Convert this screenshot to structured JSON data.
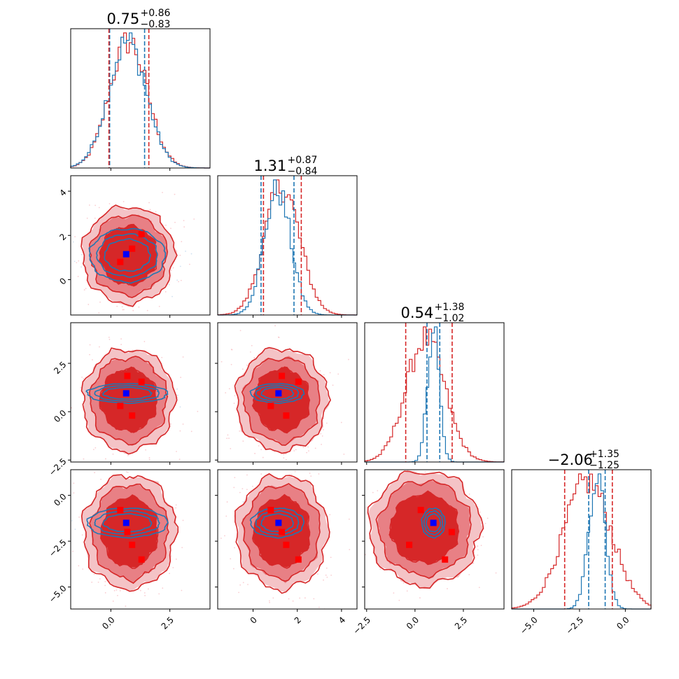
{
  "chart_data": {
    "type": "corner",
    "n_params": 4,
    "colors": {
      "red": "#d62728",
      "blue": "#1f77b4",
      "marker_red": "#ff0000",
      "marker_blue": "#0000ff"
    },
    "axis_ranges": [
      [
        -1.7,
        4.2
      ],
      [
        -1.6,
        4.7
      ],
      [
        -2.6,
        4.6
      ],
      [
        -6.2,
        1.4
      ]
    ],
    "titles": [
      {
        "value": "0.75",
        "plus": "+0.86",
        "minus": "−0.83"
      },
      {
        "value": "1.31",
        "plus": "+0.87",
        "minus": "−0.84"
      },
      {
        "value": "0.54",
        "plus": "+1.38",
        "minus": "−1.02"
      },
      {
        "value": "−2.06",
        "plus": "+1.35",
        "minus": "−1.25"
      }
    ],
    "ticks": {
      "p0": [
        {
          "v": 0,
          "label": "0.0"
        },
        {
          "v": 2.5,
          "label": "2.5"
        }
      ],
      "p1": [
        {
          "v": 0,
          "label": "0"
        },
        {
          "v": 2,
          "label": "2"
        },
        {
          "v": 4,
          "label": "4"
        }
      ],
      "p2": [
        {
          "v": -2.5,
          "label": "−2.5"
        },
        {
          "v": 0,
          "label": "0.0"
        },
        {
          "v": 2.5,
          "label": "2.5"
        }
      ],
      "p3": [
        {
          "v": -5,
          "label": "−5.0"
        },
        {
          "v": -2.5,
          "label": "−2.5"
        },
        {
          "v": 0,
          "label": "0.0"
        }
      ]
    },
    "quantiles_red": [
      [
        -0.08,
        1.61
      ],
      [
        0.47,
        2.18
      ],
      [
        -0.48,
        1.92
      ],
      [
        -3.31,
        -0.71
      ]
    ],
    "quantiles_blue": [
      [
        -0.05,
        1.43
      ],
      [
        0.36,
        1.85
      ],
      [
        0.62,
        1.28
      ],
      [
        -2.0,
        -1.1
      ]
    ],
    "marginal_width": [
      [
        0.8,
        0.8
      ],
      [
        0.8,
        0.6
      ],
      [
        1.0,
        0.3
      ],
      [
        1.3,
        0.45
      ]
    ],
    "marginal_center": [
      [
        0.75,
        0.7
      ],
      [
        1.31,
        1.1
      ],
      [
        0.54,
        0.95
      ],
      [
        -2.06,
        -1.55
      ]
    ],
    "red_ellipses": [
      {
        "row": 1,
        "col": 0,
        "cx": 0.75,
        "cy": 1.1,
        "sx": 0.85,
        "sy": 0.95,
        "levels": [
          1.4,
          1.9,
          2.3
        ]
      },
      {
        "row": 2,
        "col": 0,
        "cx": 0.75,
        "cy": 0.6,
        "sx": 0.85,
        "sy": 1.15,
        "levels": [
          1.4,
          1.9,
          2.3
        ]
      },
      {
        "row": 2,
        "col": 1,
        "cx": 1.3,
        "cy": 0.6,
        "sx": 0.9,
        "sy": 1.15,
        "levels": [
          1.4,
          1.9,
          2.3
        ]
      },
      {
        "row": 3,
        "col": 0,
        "cx": 0.8,
        "cy": -2.0,
        "sx": 0.85,
        "sy": 1.35,
        "levels": [
          1.4,
          1.9,
          2.3
        ]
      },
      {
        "row": 3,
        "col": 1,
        "cx": 1.3,
        "cy": -2.0,
        "sx": 0.9,
        "sy": 1.35,
        "levels": [
          1.4,
          1.9,
          2.3
        ]
      },
      {
        "row": 3,
        "col": 2,
        "cx": 0.5,
        "cy": -1.8,
        "sx": 1.25,
        "sy": 1.35,
        "levels": [
          1.4,
          1.9,
          2.3
        ]
      }
    ],
    "blue_ellipses": [
      {
        "row": 1,
        "col": 0,
        "cx": 0.7,
        "cy": 1.1,
        "sx": 0.8,
        "sy": 0.6,
        "levels": [
          1.2,
          1.6,
          2.0
        ]
      },
      {
        "row": 2,
        "col": 0,
        "cx": 0.7,
        "cy": 0.95,
        "sx": 0.85,
        "sy": 0.25,
        "levels": [
          1.2,
          1.6,
          2.0
        ]
      },
      {
        "row": 2,
        "col": 1,
        "cx": 1.1,
        "cy": 0.95,
        "sx": 0.6,
        "sy": 0.25,
        "levels": [
          1.2,
          1.6,
          2.0
        ]
      },
      {
        "row": 3,
        "col": 0,
        "cx": 0.7,
        "cy": -1.5,
        "sx": 0.85,
        "sy": 0.4,
        "levels": [
          1.2,
          1.6,
          2.0
        ]
      },
      {
        "row": 3,
        "col": 1,
        "cx": 1.1,
        "cy": -1.5,
        "sx": 0.6,
        "sy": 0.4,
        "levels": [
          1.2,
          1.6,
          2.0
        ]
      },
      {
        "row": 3,
        "col": 2,
        "cx": 0.95,
        "cy": -1.5,
        "sx": 0.3,
        "sy": 0.4,
        "levels": [
          1.2,
          1.6,
          2.0
        ]
      }
    ],
    "red_markers": {
      "1_0": [
        [
          1.3,
          2.05
        ],
        [
          0.9,
          1.4
        ],
        [
          0.4,
          0.8
        ]
      ],
      "2_0": [
        [
          0.7,
          1.85
        ],
        [
          1.3,
          1.55
        ],
        [
          0.4,
          0.3
        ],
        [
          0.9,
          -0.2
        ]
      ],
      "2_1": [
        [
          1.3,
          1.85
        ],
        [
          2.05,
          1.55
        ],
        [
          0.8,
          0.3
        ],
        [
          1.5,
          -0.2
        ]
      ],
      "3_0": [
        [
          0.4,
          -0.8
        ],
        [
          0.7,
          -2.0
        ],
        [
          0.9,
          -2.7
        ],
        [
          1.3,
          -3.5
        ]
      ],
      "3_1": [
        [
          0.8,
          -0.8
        ],
        [
          1.3,
          -2.0
        ],
        [
          1.5,
          -2.7
        ],
        [
          2.05,
          -3.5
        ]
      ],
      "3_2": [
        [
          0.3,
          -0.8
        ],
        [
          -0.3,
          -2.7
        ],
        [
          1.9,
          -2.0
        ],
        [
          1.55,
          -3.5
        ]
      ]
    },
    "blue_markers": {
      "1_0": [
        [
          0.65,
          1.15
        ]
      ],
      "2_0": [
        [
          0.65,
          0.95
        ]
      ],
      "2_1": [
        [
          1.15,
          0.95
        ]
      ],
      "3_0": [
        [
          0.65,
          -1.5
        ]
      ],
      "3_1": [
        [
          1.15,
          -1.5
        ]
      ],
      "3_2": [
        [
          0.95,
          -1.5
        ]
      ]
    }
  }
}
